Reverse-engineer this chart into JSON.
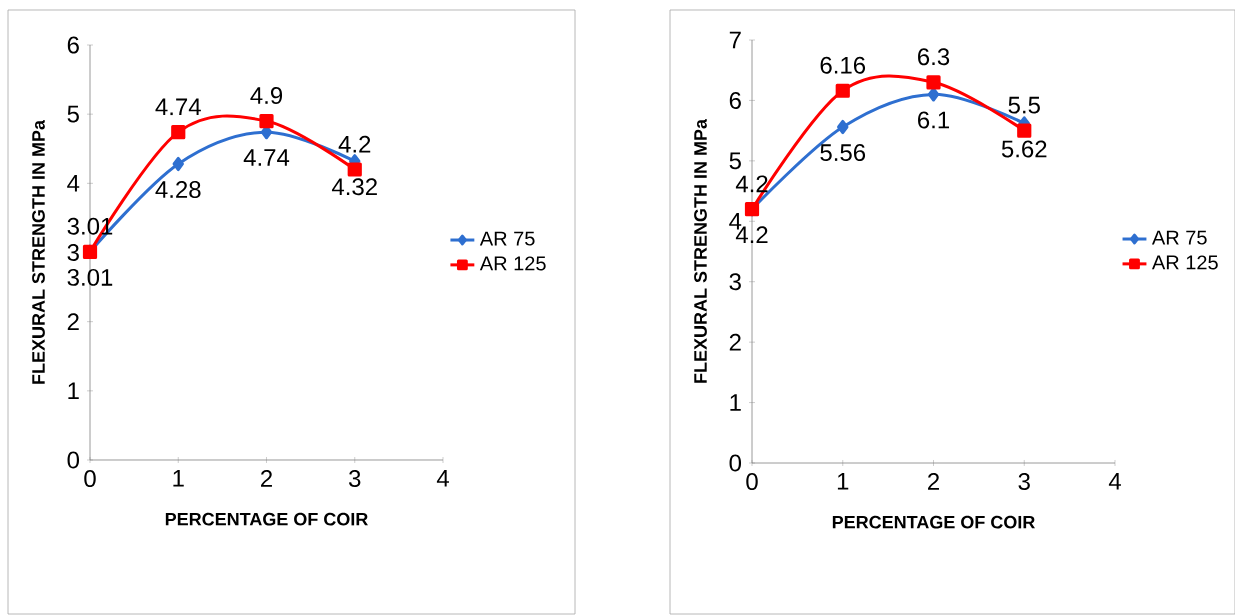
{
  "chart_data": [
    {
      "type": "line",
      "xlabel": "PERCENTAGE OF COIR",
      "ylabel": "FLEXURAL STRENGTH IN MPa",
      "x": [
        0,
        1,
        2,
        3
      ],
      "xlim": [
        0,
        4
      ],
      "xticks": [
        0,
        1,
        2,
        3,
        4
      ],
      "ylim": [
        0,
        6
      ],
      "yticks": [
        0,
        1,
        2,
        3,
        4,
        5,
        6
      ],
      "legend": "right",
      "data_labels": true,
      "grid": false,
      "line_style": "solid",
      "series": [
        {
          "name": "AR 75",
          "color": "#2e6fd0",
          "marker": "diamond",
          "values": [
            3.01,
            4.28,
            4.74,
            4.32
          ]
        },
        {
          "name": "AR 125",
          "color": "#ff0000",
          "marker": "square",
          "values": [
            3.01,
            4.74,
            4.9,
            4.2
          ]
        }
      ]
    },
    {
      "type": "line",
      "xlabel": "PERCENTAGE OF COIR",
      "ylabel": "FLEXURAL STRENGTH IN MPa",
      "x": [
        0,
        1,
        2,
        3
      ],
      "xlim": [
        0,
        4
      ],
      "xticks": [
        0,
        1,
        2,
        3,
        4
      ],
      "ylim": [
        0,
        7
      ],
      "yticks": [
        0,
        1,
        2,
        3,
        4,
        5,
        6,
        7
      ],
      "legend": "right",
      "data_labels": true,
      "grid": false,
      "line_style": "solid",
      "series": [
        {
          "name": "AR 75",
          "color": "#2e6fd0",
          "marker": "diamond",
          "values": [
            4.2,
            5.56,
            6.1,
            5.62
          ]
        },
        {
          "name": "AR 125",
          "color": "#ff0000",
          "marker": "square",
          "values": [
            4.2,
            6.16,
            6.3,
            5.5
          ]
        }
      ]
    }
  ]
}
